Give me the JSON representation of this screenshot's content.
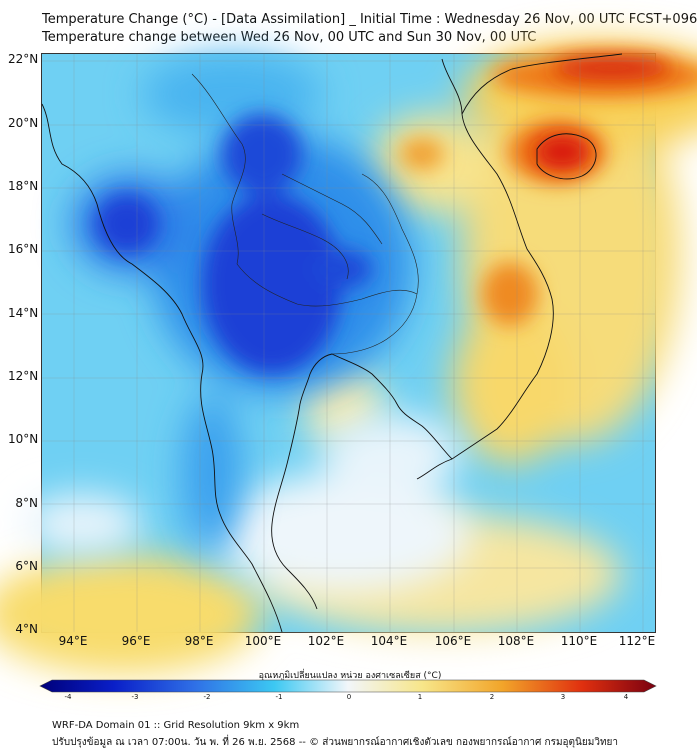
{
  "header": {
    "title_line1": "Temperature Change (°C) - [Data Assimilation] _ Initial Time : Wednesday 26 Nov, 00 UTC FCST+096",
    "title_line2": "Temperature change between Wed 26 Nov, 00 UTC and Sun 30 Nov, 00 UTC"
  },
  "map": {
    "lat_labels": [
      "22°N",
      "20°N",
      "18°N",
      "16°N",
      "14°N",
      "12°N",
      "10°N",
      "8°N",
      "6°N",
      "4°N"
    ],
    "lon_labels": [
      "94°E",
      "96°E",
      "98°E",
      "100°E",
      "102°E",
      "104°E",
      "106°E",
      "108°E",
      "110°E",
      "112°E"
    ],
    "field_colors": {
      "strong_cooling": "#1a3fd6",
      "cooling": "#2f7fe8",
      "light_cooling": "#5cc8f2",
      "neutral": "#f4f4f8",
      "warming": "#f8d25a",
      "strong_warming": "#ef7a18",
      "max_warming": "#d8120f"
    }
  },
  "colorbar": {
    "title": "อุณหภูมิเปลี่ยนแปลง หน่วย องศาเซลเซียส (°C)",
    "ticks": [
      "-4",
      "-3",
      "-2",
      "-1",
      "0",
      "1",
      "2",
      "3",
      "4"
    ]
  },
  "footer": {
    "line1": "WRF-DA Domain 01 :: Grid Resolution 9km x 9km",
    "line2": "ปรับปรุงข้อมูล ณ เวลา 07:00น. วัน พ. ที่ 26 พ.ย. 2568 -- © ส่วนพยากรณ์อากาศเชิงตัวเลข กองพยากรณ์อากาศ กรมอุตุนิยมวิทยา"
  }
}
